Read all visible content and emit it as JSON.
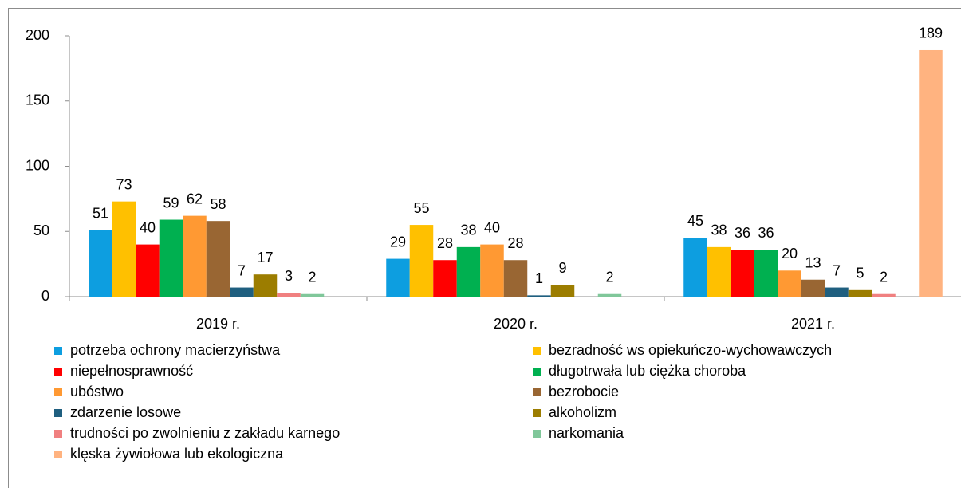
{
  "chart_data": {
    "type": "bar",
    "categories": [
      "2019 r.",
      "2020 r.",
      "2021 r."
    ],
    "ylim": [
      0,
      200
    ],
    "yticks": [
      0,
      50,
      100,
      150,
      200
    ],
    "grid": false,
    "series": [
      {
        "name": "potrzeba ochrony macierzyństwa",
        "color": "#0d9ee0",
        "values": [
          51,
          29,
          45
        ]
      },
      {
        "name": "bezradność ws opiekuńczo-wychowawczych",
        "color": "#ffc000",
        "values": [
          73,
          55,
          38
        ]
      },
      {
        "name": "niepełnosprawność",
        "color": "#ff0000",
        "values": [
          40,
          28,
          36
        ]
      },
      {
        "name": "długotrwała lub ciężka choroba",
        "color": "#00b050",
        "values": [
          59,
          38,
          36
        ]
      },
      {
        "name": "ubóstwo",
        "color": "#ff9933",
        "values": [
          62,
          40,
          20
        ]
      },
      {
        "name": "bezrobocie",
        "color": "#996633",
        "values": [
          58,
          28,
          13
        ]
      },
      {
        "name": "zdarzenie losowe",
        "color": "#1f5f7f",
        "values": [
          7,
          1,
          7
        ]
      },
      {
        "name": "alkoholizm",
        "color": "#9c7d00",
        "values": [
          17,
          9,
          5
        ]
      },
      {
        "name": "trudności po zwolnieniu z zakładu karnego",
        "color": "#f08080",
        "values": [
          3,
          null,
          2
        ]
      },
      {
        "name": "narkomania",
        "color": "#80c79a",
        "values": [
          2,
          2,
          null
        ]
      },
      {
        "name": "klęska żywiołowa lub ekologiczna",
        "color": "#ffb380",
        "values": [
          null,
          null,
          189
        ]
      }
    ]
  }
}
